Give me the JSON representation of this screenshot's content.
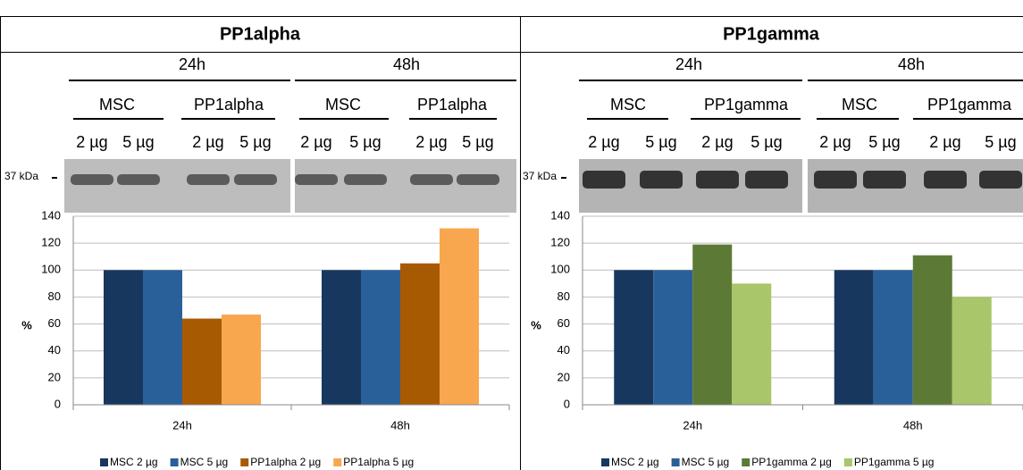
{
  "panels": [
    {
      "title": "PP1alpha",
      "times": [
        "24h",
        "48h"
      ],
      "groups": [
        "MSC",
        "PP1alpha",
        "MSC",
        "PP1alpha"
      ],
      "doses": [
        "2 µg",
        "5 µg",
        "2 µg",
        "5 µg",
        "2 µg",
        "5 µg",
        "2 µg",
        "5 µg"
      ],
      "marker": "37 kDa"
    },
    {
      "title": "PP1gamma",
      "times": [
        "24h",
        "48h"
      ],
      "groups": [
        "MSC",
        "PP1gamma",
        "MSC",
        "PP1gamma"
      ],
      "doses": [
        "2 µg",
        "5 µg",
        "2 µg",
        "5 µg",
        "2 µg",
        "5 µg",
        "2 µg",
        "5 µg"
      ],
      "marker": "37 kDa"
    }
  ],
  "chart_data": [
    {
      "type": "bar",
      "y_label": "%",
      "categories": [
        "24h",
        "48h"
      ],
      "series": [
        {
          "name": "MSC 2 µg",
          "color": "#17375e",
          "values": [
            100,
            100
          ]
        },
        {
          "name": "MSC 5 µg",
          "color": "#2a6099",
          "values": [
            100,
            100
          ]
        },
        {
          "name": "PP1alpha 2 µg",
          "color": "#a85a03",
          "values": [
            64,
            105
          ]
        },
        {
          "name": "PP1alpha 5 µg",
          "color": "#f8a74f",
          "values": [
            67,
            131
          ]
        }
      ],
      "ylim": [
        0,
        140
      ],
      "yticks": [
        0,
        20,
        40,
        60,
        80,
        100,
        120,
        140
      ],
      "grid": true,
      "legend": "bottom"
    },
    {
      "type": "bar",
      "y_label": "%",
      "categories": [
        "24h",
        "48h"
      ],
      "series": [
        {
          "name": "MSC 2 µg",
          "color": "#17375e",
          "values": [
            100,
            100
          ]
        },
        {
          "name": "MSC 5 µg",
          "color": "#2a6099",
          "values": [
            100,
            100
          ]
        },
        {
          "name": "PP1gamma 2 µg",
          "color": "#5c7a36",
          "values": [
            119,
            111
          ]
        },
        {
          "name": "PP1gamma 5 µg",
          "color": "#a9c66a",
          "values": [
            90,
            80
          ]
        }
      ],
      "ylim": [
        0,
        140
      ],
      "yticks": [
        0,
        20,
        40,
        60,
        80,
        100,
        120,
        140
      ],
      "grid": true,
      "legend": "bottom"
    }
  ]
}
